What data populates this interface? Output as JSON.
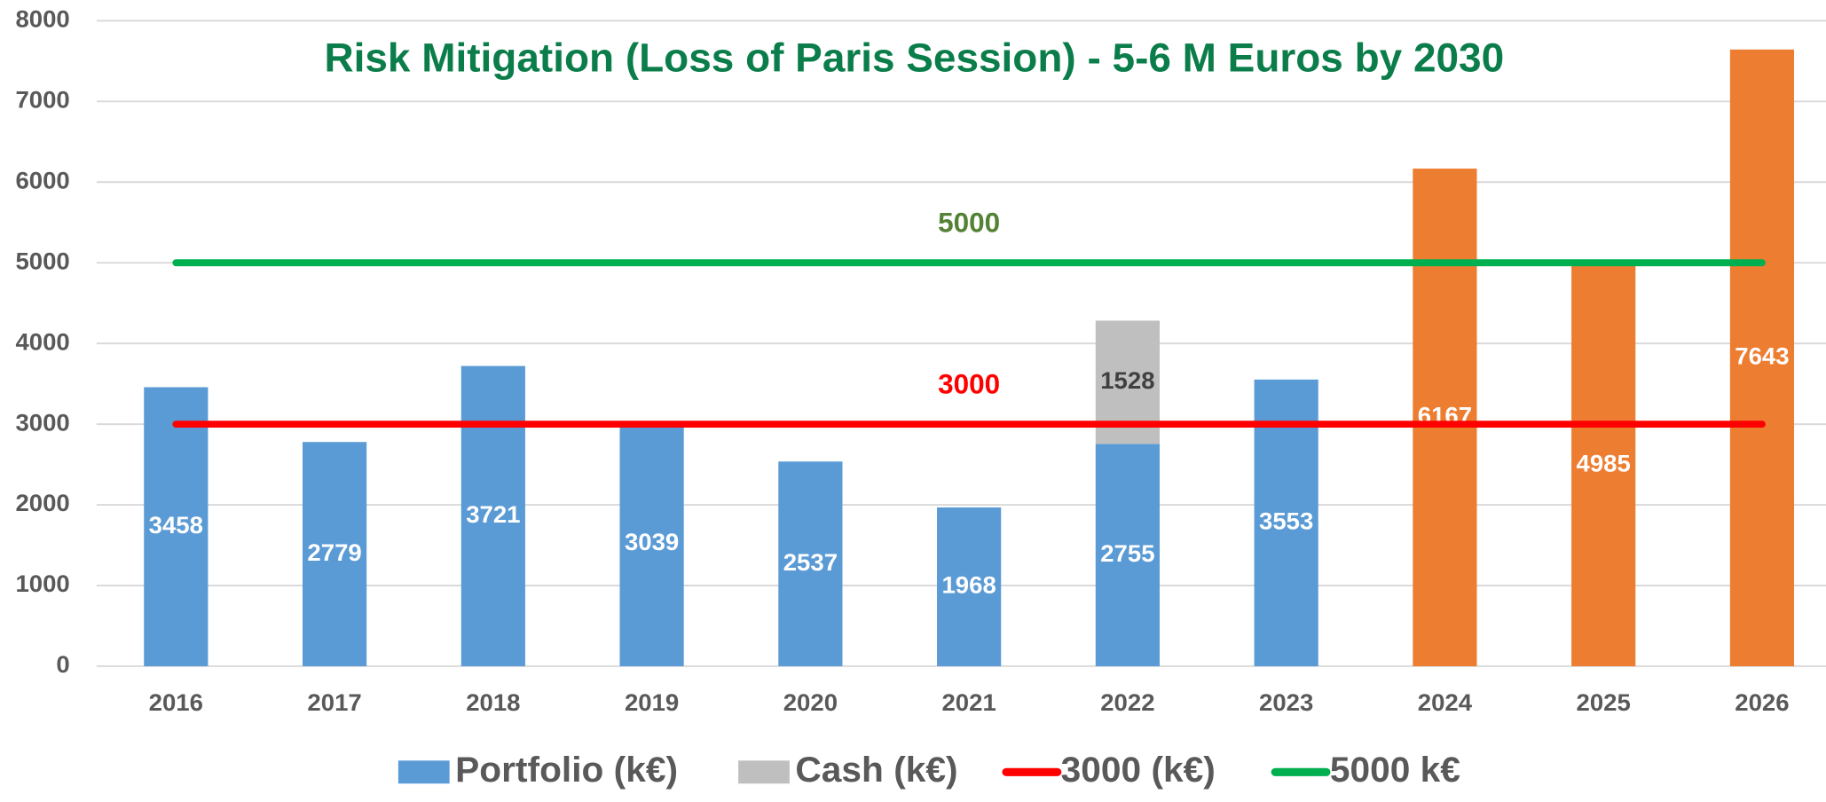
{
  "chart_data": {
    "type": "bar",
    "title": "Risk Mitigation (Loss of Paris Session) - 5-6 M Euros by 2030",
    "categories": [
      "2016",
      "2017",
      "2018",
      "2019",
      "2020",
      "2021",
      "2022",
      "2023",
      "2024",
      "2025",
      "2026"
    ],
    "series": [
      {
        "name": "Portfolio (k€)",
        "type": "bar",
        "color": "#5b9bd5",
        "colors": [
          "#5b9bd5",
          "#5b9bd5",
          "#5b9bd5",
          "#5b9bd5",
          "#5b9bd5",
          "#5b9bd5",
          "#5b9bd5",
          "#5b9bd5",
          "#ed7d31",
          "#ed7d31",
          "#ed7d31"
        ],
        "values": [
          3458,
          2779,
          3721,
          3039,
          2537,
          1968,
          2755,
          3553,
          6167,
          4985,
          7643
        ]
      },
      {
        "name": "Cash (k€)",
        "type": "bar",
        "stacked": true,
        "color": "#bfbfbf",
        "values": [
          null,
          null,
          null,
          null,
          null,
          null,
          1528,
          null,
          null,
          null,
          null
        ]
      },
      {
        "name": "3000 (k€)",
        "type": "line",
        "color": "#ff0000",
        "values": [
          3000,
          3000,
          3000,
          3000,
          3000,
          3000,
          3000,
          3000,
          3000,
          3000,
          3000
        ]
      },
      {
        "name": "5000 k€",
        "type": "line",
        "color": "#00b050",
        "values": [
          5000,
          5000,
          5000,
          5000,
          5000,
          5000,
          5000,
          5000,
          5000,
          5000,
          5000
        ]
      }
    ],
    "ylim": [
      0,
      8000
    ],
    "yticks": [
      0,
      1000,
      2000,
      3000,
      4000,
      5000,
      6000,
      7000,
      8000
    ],
    "grid": true,
    "legend": "bottom"
  }
}
